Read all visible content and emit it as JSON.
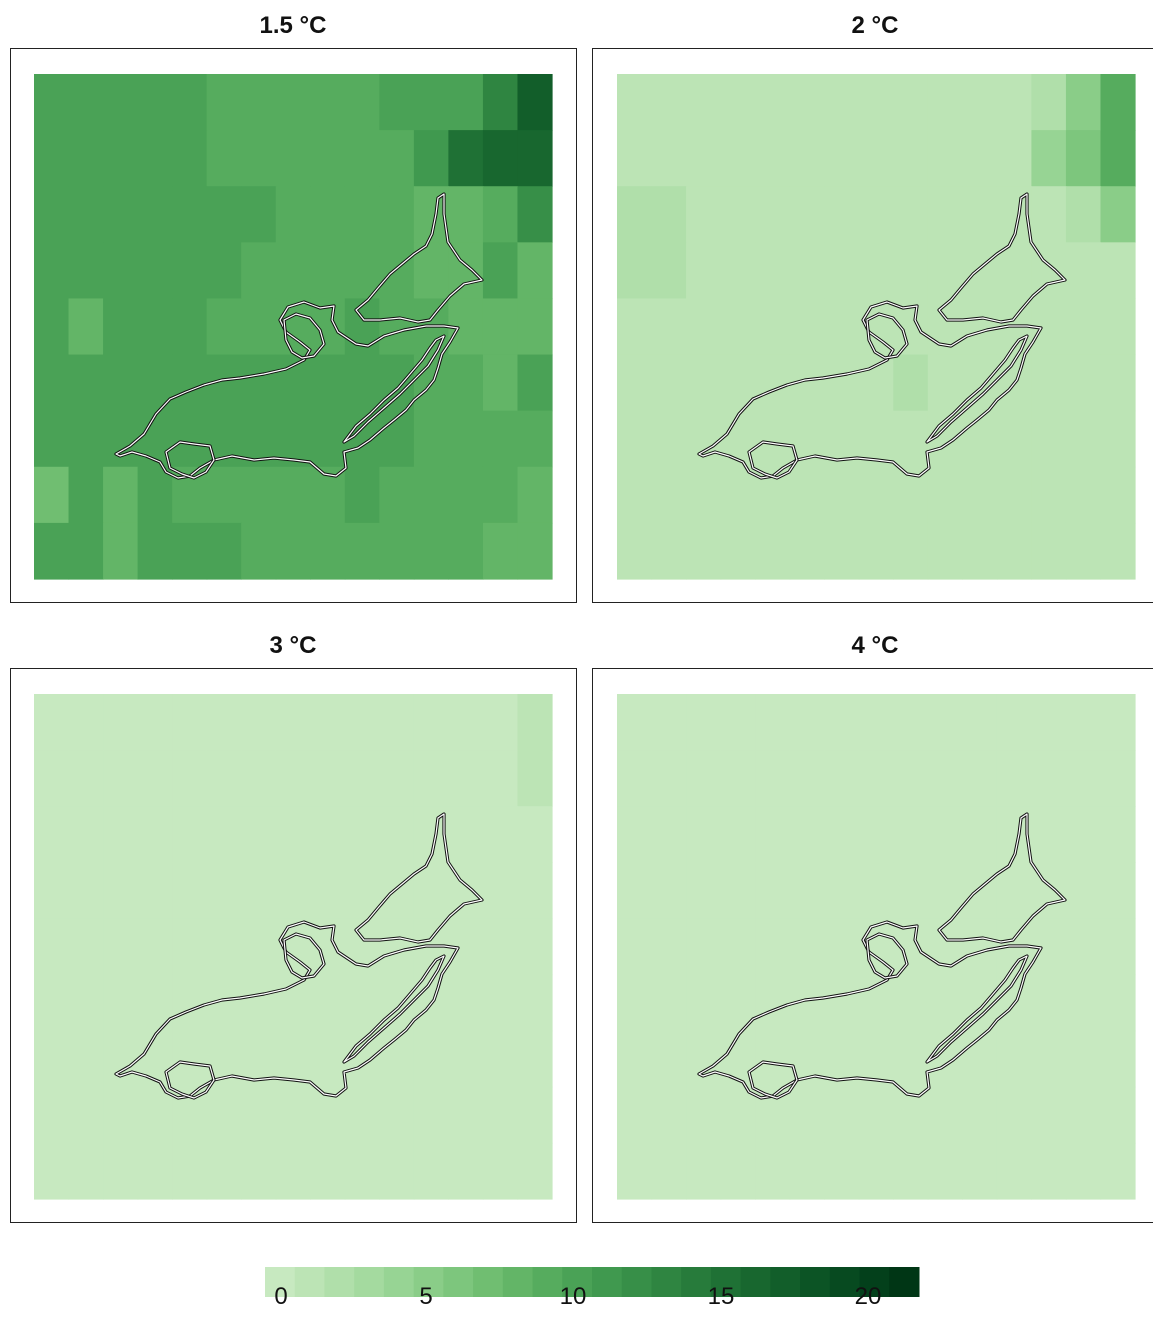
{
  "panels": [
    {
      "title": "1.5 °C",
      "rows": [
        [
          10,
          10,
          10,
          10,
          10,
          9,
          9,
          9,
          9,
          9,
          10,
          10,
          10,
          13,
          17
        ],
        [
          10,
          10,
          10,
          10,
          10,
          9,
          9,
          9,
          9,
          9,
          9,
          11,
          15,
          16,
          16
        ],
        [
          10,
          10,
          10,
          10,
          10,
          10,
          10,
          9,
          9,
          9,
          9,
          8,
          8,
          9,
          12
        ],
        [
          10,
          10,
          10,
          10,
          10,
          10,
          9,
          9,
          9,
          9,
          9,
          8,
          8,
          10,
          8
        ],
        [
          10,
          8,
          10,
          10,
          10,
          9,
          9,
          9,
          9,
          10,
          9,
          9,
          8,
          8,
          8
        ],
        [
          10,
          10,
          10,
          10,
          10,
          10,
          10,
          10,
          10,
          10,
          10,
          9,
          9,
          8,
          10
        ],
        [
          10,
          10,
          10,
          10,
          10,
          10,
          10,
          10,
          10,
          10,
          10,
          9,
          9,
          9,
          9
        ],
        [
          7,
          10,
          8,
          10,
          9,
          9,
          9,
          9,
          9,
          10,
          9,
          9,
          9,
          9,
          8
        ],
        [
          10,
          10,
          8,
          10,
          10,
          10,
          9,
          9,
          9,
          9,
          9,
          9,
          9,
          8,
          8
        ]
      ]
    },
    {
      "title": "2 °C",
      "rows": [
        [
          1,
          1,
          1,
          1,
          1,
          1,
          1,
          1,
          1,
          1,
          1,
          1,
          2,
          5,
          9
        ],
        [
          1,
          1,
          1,
          1,
          1,
          1,
          1,
          1,
          1,
          1,
          1,
          1,
          4,
          6,
          9
        ],
        [
          2,
          2,
          1,
          1,
          1,
          1,
          1,
          1,
          1,
          1,
          1,
          1,
          1,
          2,
          5
        ],
        [
          2,
          2,
          1,
          1,
          1,
          1,
          1,
          1,
          1,
          1,
          1,
          1,
          1,
          1,
          1
        ],
        [
          1,
          1,
          1,
          1,
          1,
          1,
          1,
          1,
          1,
          1,
          1,
          1,
          1,
          1,
          1
        ],
        [
          1,
          1,
          1,
          1,
          1,
          1,
          1,
          1,
          2,
          1,
          1,
          1,
          1,
          1,
          1
        ],
        [
          1,
          1,
          1,
          1,
          1,
          1,
          1,
          1,
          1,
          1,
          1,
          1,
          1,
          1,
          1
        ],
        [
          1,
          1,
          1,
          1,
          1,
          1,
          1,
          1,
          1,
          1,
          1,
          1,
          1,
          1,
          1
        ],
        [
          1,
          1,
          1,
          1,
          1,
          1,
          1,
          1,
          1,
          1,
          1,
          1,
          1,
          1,
          1
        ]
      ]
    },
    {
      "title": "3 °C",
      "rows": [
        [
          0,
          0,
          0,
          0,
          0,
          0,
          0,
          0,
          0,
          0,
          0,
          0,
          0,
          0,
          1
        ],
        [
          0,
          0,
          0,
          0,
          0,
          0,
          0,
          0,
          0,
          0,
          0,
          0,
          0,
          0,
          1
        ],
        [
          0,
          0,
          0,
          0,
          0,
          0,
          0,
          0,
          0,
          0,
          0,
          0,
          0,
          0,
          0
        ],
        [
          0,
          0,
          0,
          0,
          0,
          0,
          0,
          0,
          0,
          0,
          0,
          0,
          0,
          0,
          0
        ],
        [
          0,
          0,
          0,
          0,
          0,
          0,
          0,
          0,
          0,
          0,
          0,
          0,
          0,
          0,
          0
        ],
        [
          0,
          0,
          0,
          0,
          0,
          0,
          0,
          0,
          0,
          0,
          0,
          0,
          0,
          0,
          0
        ],
        [
          0,
          0,
          0,
          0,
          0,
          0,
          0,
          0,
          0,
          0,
          0,
          0,
          0,
          0,
          0
        ],
        [
          0,
          0,
          0,
          0,
          0,
          0,
          0,
          0,
          0,
          0,
          0,
          0,
          0,
          0,
          0
        ],
        [
          0,
          0,
          0,
          0,
          0,
          0,
          0,
          0,
          0,
          0,
          0,
          0,
          0,
          0,
          0
        ]
      ]
    },
    {
      "title": "4 °C",
      "rows": [
        [
          0,
          0,
          0,
          0,
          0,
          0,
          0,
          0,
          0,
          0,
          0,
          0,
          0,
          0,
          0
        ],
        [
          0,
          0,
          0,
          0,
          0,
          0,
          0,
          0,
          0,
          0,
          0,
          0,
          0,
          0,
          0
        ],
        [
          0,
          0,
          0,
          0,
          0,
          0,
          0,
          0,
          0,
          0,
          0,
          0,
          0,
          0,
          0
        ],
        [
          0,
          0,
          0,
          0,
          0,
          0,
          0,
          0,
          0,
          0,
          0,
          0,
          0,
          0,
          0
        ],
        [
          0,
          0,
          0,
          0,
          0,
          0,
          0,
          0,
          0,
          0,
          0,
          0,
          0,
          0,
          0
        ],
        [
          0,
          0,
          0,
          0,
          0,
          0,
          0,
          0,
          0,
          0,
          0,
          0,
          0,
          0,
          0
        ],
        [
          0,
          0,
          0,
          0,
          0,
          0,
          0,
          0,
          0,
          0,
          0,
          0,
          0,
          0,
          0
        ],
        [
          0,
          0,
          0,
          0,
          0,
          0,
          0,
          0,
          0,
          0,
          0,
          0,
          0,
          0,
          0
        ],
        [
          0,
          0,
          0,
          0,
          0,
          0,
          0,
          0,
          0,
          0,
          0,
          0,
          0,
          0,
          0
        ]
      ]
    }
  ],
  "colorbar": {
    "colors": [
      "#c7e9c0",
      "#bce4b5",
      "#b0dfaa",
      "#a4da9f",
      "#97d494",
      "#8acd88",
      "#7dc67d",
      "#70be71",
      "#63b567",
      "#56ac5e",
      "#4aa256",
      "#40994f",
      "#378f48",
      "#2f8541",
      "#277b3b",
      "#1f7135",
      "#18672f",
      "#125e2a",
      "#0c5425",
      "#074a20",
      "#03401b",
      "#003615"
    ],
    "ticks": [
      "0",
      "5",
      "10",
      "15",
      "20"
    ]
  }
}
